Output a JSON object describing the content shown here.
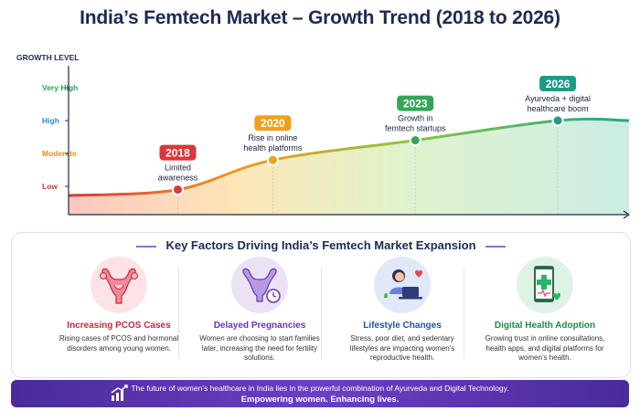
{
  "title": "India’s Femtech Market – Growth Trend (2018 to 2026)",
  "chart_data": {
    "type": "area",
    "ylabel": "GROWTH LEVEL",
    "y_levels": [
      "Low",
      "Moderate",
      "High",
      "Very High"
    ],
    "y_level_colors": [
      "#d9373a",
      "#e8900c",
      "#2b8ccf",
      "#2aa257"
    ],
    "x": [
      2018,
      2020,
      2023,
      2026
    ],
    "values": [
      0.9,
      1.8,
      2.4,
      3.0
    ],
    "milestones": [
      {
        "year": "2018",
        "label_lines": [
          "Limited",
          "awareness"
        ],
        "color": "#d9373a"
      },
      {
        "year": "2020",
        "label_lines": [
          "Rise in online",
          "health platforms"
        ],
        "color": "#efa21a"
      },
      {
        "year": "2023",
        "label_lines": [
          "Growth in",
          "femtech startups"
        ],
        "color": "#35a55a"
      },
      {
        "year": "2026",
        "label_lines": [
          "Ayurveda + digital",
          "healthcare boom"
        ],
        "color": "#1f9a86"
      }
    ]
  },
  "factors_title": "Key Factors Driving India’s Femtech Market Expansion",
  "factors": [
    {
      "title": "Increasing PCOS Cases",
      "desc": "Rising cases of PCOS and hormonal disorders among young women.",
      "color": "#c9283e",
      "icon": "uterus-icon"
    },
    {
      "title": "Delayed Pregnancies",
      "desc": "Women are choosing to start families later, increasing the need for fertility solutions.",
      "color": "#6a36b0",
      "icon": "uterus-clock-icon"
    },
    {
      "title": "Lifestyle Changes",
      "desc": "Stress, poor diet, and sedentary lifestyles are impacting women’s reproductive health.",
      "color": "#1f55a8",
      "icon": "woman-laptop-icon"
    },
    {
      "title": "Digital Health Adoption",
      "desc": "Growing trust in online consultations, health apps, and digital platforms for women’s health.",
      "color": "#1f8a4a",
      "icon": "health-phone-icon"
    }
  ],
  "banner": {
    "line1": "The future of women’s healthcare in India lies in the powerful combination of Ayurveda and Digital Technology.",
    "line2": "Empowering women. Enhancing lives.",
    "icon": "growth-chart-icon"
  }
}
